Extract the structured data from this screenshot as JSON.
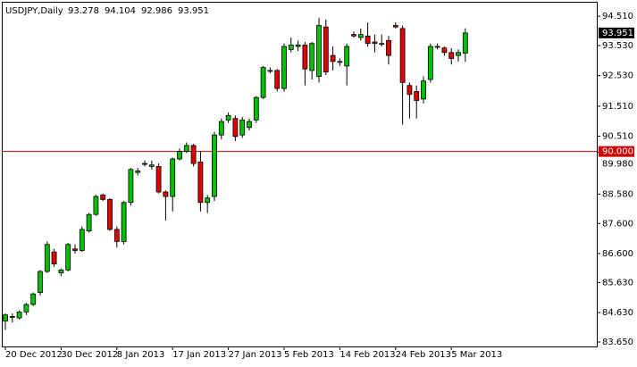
{
  "chart_data": {
    "type": "candlestick",
    "title": "USDJPY,Daily",
    "header_values": [
      {
        "value": 93.278,
        "label": "93.278"
      },
      {
        "value": 94.104,
        "label": "94.104"
      },
      {
        "value": 92.986,
        "label": "92.986"
      },
      {
        "value": 93.951,
        "label": "93.951"
      }
    ],
    "categories": [
      "20 Dec 2012",
      null,
      null,
      null,
      null,
      null,
      null,
      null,
      "30 Dec 2012",
      null,
      null,
      null,
      null,
      null,
      null,
      null,
      "8 Jan 2013",
      null,
      null,
      null,
      null,
      null,
      null,
      null,
      "17 Jan 2013",
      null,
      null,
      null,
      null,
      null,
      null,
      null,
      "27 Jan 2013",
      null,
      null,
      null,
      null,
      null,
      null,
      null,
      "5 Feb 2013",
      null,
      null,
      null,
      null,
      null,
      null,
      null,
      "14 Feb 2013",
      null,
      null,
      null,
      null,
      null,
      null,
      null,
      "24 Feb 2013",
      null,
      null,
      null,
      null,
      null,
      null,
      null,
      "5 Mar 2013",
      null,
      null
    ],
    "open": [
      84.35,
      84.5,
      84.45,
      84.65,
      84.9,
      85.3,
      86.0,
      86.65,
      85.95,
      86.05,
      86.75,
      86.7,
      87.35,
      87.9,
      88.55,
      88.4,
      87.4,
      87.0,
      88.3,
      89.3,
      89.6,
      89.5,
      89.5,
      88.65,
      88.5,
      89.75,
      90.0,
      90.2,
      89.65,
      88.3,
      88.5,
      90.55,
      91.05,
      91.1,
      90.55,
      90.8,
      91.05,
      91.8,
      92.7,
      92.7,
      92.1,
      93.4,
      93.5,
      93.55,
      92.7,
      92.5,
      94.15,
      93.2,
      93.0,
      92.85,
      93.9,
      93.8,
      93.85,
      93.65,
      93.6,
      93.7,
      94.2,
      94.1,
      92.2,
      92.0,
      91.75,
      92.4,
      93.5,
      93.45,
      93.3,
      93.2,
      93.278
    ],
    "high": [
      84.6,
      84.6,
      84.7,
      84.95,
      85.3,
      86.05,
      87.0,
      86.75,
      86.1,
      86.95,
      86.9,
      87.5,
      87.95,
      88.55,
      88.6,
      88.45,
      87.5,
      88.35,
      89.45,
      89.45,
      89.7,
      89.7,
      89.6,
      88.7,
      89.8,
      90.1,
      90.3,
      90.25,
      90.0,
      88.55,
      90.65,
      91.1,
      91.3,
      91.2,
      91.15,
      91.1,
      91.85,
      92.85,
      92.8,
      92.75,
      93.6,
      93.8,
      93.7,
      93.65,
      93.65,
      94.45,
      94.4,
      93.5,
      93.1,
      93.6,
      94.0,
      94.1,
      94.3,
      93.9,
      93.9,
      93.85,
      94.3,
      94.2,
      92.3,
      92.2,
      92.5,
      93.6,
      93.6,
      93.5,
      93.45,
      93.4,
      94.104
    ],
    "low": [
      84.05,
      84.3,
      84.4,
      84.55,
      84.85,
      85.2,
      85.95,
      86.15,
      85.85,
      86.0,
      86.6,
      86.65,
      87.3,
      87.85,
      88.35,
      87.35,
      86.8,
      86.9,
      88.2,
      89.2,
      89.5,
      89.4,
      88.6,
      87.7,
      88.0,
      89.7,
      89.95,
      89.5,
      88.0,
      87.95,
      88.35,
      90.4,
      90.95,
      90.35,
      90.45,
      90.7,
      90.95,
      91.75,
      92.6,
      92.0,
      92.0,
      93.3,
      93.35,
      92.2,
      92.4,
      92.3,
      92.55,
      92.7,
      92.85,
      92.2,
      93.8,
      93.7,
      93.5,
      93.3,
      93.5,
      92.9,
      94.1,
      90.9,
      91.1,
      91.1,
      91.6,
      92.3,
      93.4,
      93.2,
      92.9,
      93.0,
      92.986
    ],
    "close": [
      84.55,
      84.5,
      84.65,
      84.9,
      85.25,
      86.0,
      86.9,
      86.25,
      86.05,
      86.9,
      86.7,
      87.4,
      87.9,
      88.5,
      88.4,
      87.4,
      87.0,
      88.3,
      89.4,
      89.35,
      89.6,
      89.55,
      88.65,
      88.5,
      89.75,
      90.0,
      90.2,
      89.6,
      88.3,
      88.45,
      90.55,
      91.0,
      91.2,
      90.5,
      91.05,
      91.0,
      91.8,
      92.8,
      92.7,
      92.1,
      93.5,
      93.55,
      93.55,
      92.75,
      93.6,
      94.2,
      92.65,
      93.0,
      93.0,
      93.5,
      93.85,
      93.9,
      93.6,
      93.6,
      93.6,
      93.2,
      94.15,
      92.3,
      91.9,
      91.7,
      92.35,
      93.5,
      93.5,
      93.3,
      93.1,
      93.3,
      93.951
    ],
    "up_color": "#00c000",
    "down_color": "#e00000",
    "ylim": [
      83.5,
      94.96
    ],
    "yticks": [
      {
        "value": 94.51,
        "label": "94.510"
      },
      {
        "value": 93.53,
        "label": "93.530"
      },
      {
        "value": 92.53,
        "label": "92.530"
      },
      {
        "value": 91.51,
        "label": "91.510"
      },
      {
        "value": 90.51,
        "label": "90.510"
      },
      {
        "value": 89.98,
        "label": "89.980"
      },
      {
        "value": 88.58,
        "label": "88.580"
      },
      {
        "value": 87.6,
        "label": "87.600"
      },
      {
        "value": 86.6,
        "label": "86.600"
      },
      {
        "value": 85.63,
        "label": "85.630"
      },
      {
        "value": 84.63,
        "label": "84.630"
      },
      {
        "value": 83.65,
        "label": "83.650"
      }
    ],
    "hline": {
      "value": 90,
      "label": "90.000",
      "color": "#cc0000"
    },
    "last_price": {
      "value": 93.951,
      "label": "93.951"
    }
  }
}
